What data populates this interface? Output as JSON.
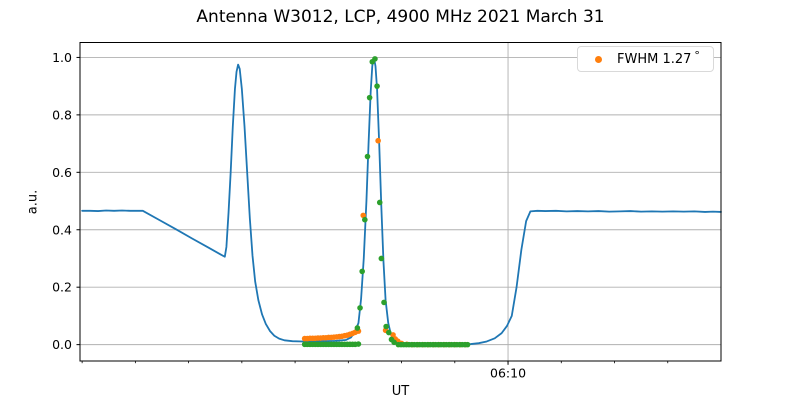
{
  "chart_data": {
    "type": "line",
    "title": "Antenna W3012, LCP, 4900 MHz 2021 March 31",
    "xlabel": "UT",
    "ylabel": "a.u.",
    "legend": {
      "label": "FWHM 1.27",
      "degree_symbol": "°",
      "position": "upper right",
      "marker_color": "#ff7f0e"
    },
    "background": "#ffffff",
    "grid": {
      "horizontal": true,
      "vertical_at_major_ticks": true,
      "color": "#b0b0b0"
    },
    "x_axis": {
      "t_unit": "minutes after 06:00 UT",
      "range": [
        1.96,
        14.0
      ],
      "minor_ticks": [
        2,
        3,
        4,
        5,
        6,
        7,
        8,
        9,
        10,
        11,
        12,
        13
      ],
      "major_ticks": [
        {
          "t": 10,
          "label": "06:10"
        }
      ]
    },
    "y_axis": {
      "range": [
        -0.057,
        1.052
      ],
      "ticks": [
        {
          "v": 0.0,
          "label": "0.0"
        },
        {
          "v": 0.2,
          "label": "0.2"
        },
        {
          "v": 0.4,
          "label": "0.4"
        },
        {
          "v": 0.6,
          "label": "0.6"
        },
        {
          "v": 0.8,
          "label": "0.8"
        },
        {
          "v": 1.0,
          "label": "1.0"
        }
      ]
    },
    "series": [
      {
        "name": "drift-scan-signal",
        "type": "line",
        "color": "#1f77b4",
        "line_width": 1.8,
        "points": [
          [
            2.0,
            0.466
          ],
          [
            2.15,
            0.466
          ],
          [
            2.3,
            0.465
          ],
          [
            2.45,
            0.467
          ],
          [
            2.6,
            0.466
          ],
          [
            2.75,
            0.467
          ],
          [
            2.9,
            0.466
          ],
          [
            3.05,
            0.466
          ],
          [
            3.14,
            0.466
          ],
          [
            3.45,
            0.434
          ],
          [
            3.76,
            0.402
          ],
          [
            4.07,
            0.369
          ],
          [
            4.38,
            0.337
          ],
          [
            4.6,
            0.314
          ],
          [
            4.68,
            0.306
          ],
          [
            4.71,
            0.34
          ],
          [
            4.75,
            0.46
          ],
          [
            4.79,
            0.6
          ],
          [
            4.83,
            0.76
          ],
          [
            4.87,
            0.89
          ],
          [
            4.9,
            0.95
          ],
          [
            4.93,
            0.975
          ],
          [
            4.96,
            0.96
          ],
          [
            5.0,
            0.89
          ],
          [
            5.05,
            0.76
          ],
          [
            5.1,
            0.6
          ],
          [
            5.15,
            0.44
          ],
          [
            5.2,
            0.31
          ],
          [
            5.25,
            0.22
          ],
          [
            5.31,
            0.155
          ],
          [
            5.38,
            0.105
          ],
          [
            5.45,
            0.072
          ],
          [
            5.53,
            0.047
          ],
          [
            5.61,
            0.031
          ],
          [
            5.7,
            0.021
          ],
          [
            5.8,
            0.015
          ],
          [
            5.95,
            0.012
          ],
          [
            6.15,
            0.011
          ],
          [
            6.35,
            0.011
          ],
          [
            6.55,
            0.012
          ],
          [
            6.75,
            0.013
          ],
          [
            6.95,
            0.016
          ],
          [
            7.05,
            0.025
          ],
          [
            7.12,
            0.045
          ],
          [
            7.19,
            0.075
          ],
          [
            7.24,
            0.16
          ],
          [
            7.29,
            0.3
          ],
          [
            7.34,
            0.5
          ],
          [
            7.38,
            0.7
          ],
          [
            7.42,
            0.88
          ],
          [
            7.45,
            0.97
          ],
          [
            7.48,
            1.0
          ],
          [
            7.51,
            0.97
          ],
          [
            7.54,
            0.89
          ],
          [
            7.58,
            0.7
          ],
          [
            7.62,
            0.48
          ],
          [
            7.66,
            0.29
          ],
          [
            7.7,
            0.155
          ],
          [
            7.75,
            0.075
          ],
          [
            7.8,
            0.035
          ],
          [
            7.85,
            0.016
          ],
          [
            7.92,
            0.008
          ],
          [
            8.02,
            0.004
          ],
          [
            8.2,
            0.002
          ],
          [
            8.5,
            0.001
          ],
          [
            8.8,
            0.001
          ],
          [
            9.1,
            0.001
          ],
          [
            9.3,
            0.002
          ],
          [
            9.45,
            0.005
          ],
          [
            9.6,
            0.011
          ],
          [
            9.75,
            0.022
          ],
          [
            9.88,
            0.04
          ],
          [
            9.98,
            0.065
          ],
          [
            10.07,
            0.1
          ],
          [
            10.16,
            0.2
          ],
          [
            10.25,
            0.33
          ],
          [
            10.34,
            0.43
          ],
          [
            10.42,
            0.464
          ],
          [
            10.55,
            0.466
          ],
          [
            10.7,
            0.465
          ],
          [
            10.9,
            0.466
          ],
          [
            11.1,
            0.464
          ],
          [
            11.3,
            0.465
          ],
          [
            11.5,
            0.464
          ],
          [
            11.7,
            0.465
          ],
          [
            11.9,
            0.463
          ],
          [
            12.1,
            0.464
          ],
          [
            12.3,
            0.465
          ],
          [
            12.5,
            0.463
          ],
          [
            12.7,
            0.464
          ],
          [
            12.9,
            0.463
          ],
          [
            13.1,
            0.464
          ],
          [
            13.3,
            0.463
          ],
          [
            13.5,
            0.464
          ],
          [
            13.7,
            0.462
          ],
          [
            13.85,
            0.463
          ],
          [
            14.0,
            0.462
          ]
        ]
      },
      {
        "name": "gaussian-fit-markers",
        "type": "scatter",
        "color": "#ff7f0e",
        "marker": "dot",
        "marker_radius": 2.8,
        "legend_label": "FWHM 1.27 °",
        "points": [
          [
            6.18,
            0.021
          ],
          [
            6.23,
            0.021
          ],
          [
            6.28,
            0.022
          ],
          [
            6.33,
            0.022
          ],
          [
            6.38,
            0.022
          ],
          [
            6.43,
            0.023
          ],
          [
            6.48,
            0.023
          ],
          [
            6.53,
            0.024
          ],
          [
            6.58,
            0.024
          ],
          [
            6.63,
            0.025
          ],
          [
            6.68,
            0.025
          ],
          [
            6.73,
            0.026
          ],
          [
            6.78,
            0.027
          ],
          [
            6.83,
            0.028
          ],
          [
            6.88,
            0.029
          ],
          [
            6.93,
            0.031
          ],
          [
            6.98,
            0.033
          ],
          [
            7.03,
            0.036
          ],
          [
            7.08,
            0.039
          ],
          [
            7.13,
            0.043
          ],
          [
            7.19,
            0.047
          ],
          [
            7.28,
            0.45
          ],
          [
            7.56,
            0.71
          ],
          [
            7.7,
            0.05
          ],
          [
            7.84,
            0.034
          ],
          [
            7.88,
            0.02
          ],
          [
            7.93,
            0.012
          ],
          [
            8.0,
            0.004
          ],
          [
            8.1,
            0.001
          ],
          [
            8.2,
            0.0
          ],
          [
            8.3,
            0.0
          ],
          [
            8.4,
            0.0
          ],
          [
            8.5,
            0.0
          ],
          [
            8.6,
            0.0
          ],
          [
            8.7,
            0.0
          ],
          [
            8.8,
            0.0
          ],
          [
            8.9,
            0.0
          ],
          [
            9.0,
            0.0
          ],
          [
            9.1,
            0.0
          ],
          [
            9.2,
            0.0
          ]
        ]
      },
      {
        "name": "calibrated-data-markers",
        "type": "scatter",
        "color": "#2ca02c",
        "marker": "dot",
        "marker_radius": 2.8,
        "points": [
          [
            6.18,
            0.001
          ],
          [
            6.23,
            0.001
          ],
          [
            6.28,
            0.001
          ],
          [
            6.33,
            0.001
          ],
          [
            6.38,
            0.001
          ],
          [
            6.43,
            0.001
          ],
          [
            6.48,
            0.001
          ],
          [
            6.53,
            0.001
          ],
          [
            6.58,
            0.001
          ],
          [
            6.63,
            0.001
          ],
          [
            6.68,
            0.001
          ],
          [
            6.73,
            0.001
          ],
          [
            6.78,
            0.001
          ],
          [
            6.83,
            0.001
          ],
          [
            6.88,
            0.001
          ],
          [
            6.93,
            0.001
          ],
          [
            6.98,
            0.001
          ],
          [
            7.03,
            0.001
          ],
          [
            7.08,
            0.001
          ],
          [
            7.13,
            0.001
          ],
          [
            7.19,
            0.002
          ],
          [
            7.17,
            0.058
          ],
          [
            7.22,
            0.128
          ],
          [
            7.26,
            0.255
          ],
          [
            7.31,
            0.435
          ],
          [
            7.36,
            0.655
          ],
          [
            7.4,
            0.86
          ],
          [
            7.45,
            0.985
          ],
          [
            7.5,
            0.995
          ],
          [
            7.54,
            0.9
          ],
          [
            7.59,
            0.495
          ],
          [
            7.62,
            0.3
          ],
          [
            7.67,
            0.147
          ],
          [
            7.71,
            0.063
          ],
          [
            7.76,
            0.042
          ],
          [
            7.81,
            0.018
          ],
          [
            7.86,
            0.008
          ],
          [
            7.94,
            0.0
          ],
          [
            7.99,
            0.0
          ],
          [
            8.04,
            0.0
          ],
          [
            8.09,
            0.0
          ],
          [
            8.14,
            0.0
          ],
          [
            8.19,
            0.0
          ],
          [
            8.24,
            0.0
          ],
          [
            8.29,
            0.0
          ],
          [
            8.34,
            0.0
          ],
          [
            8.39,
            0.0
          ],
          [
            8.44,
            0.0
          ],
          [
            8.49,
            0.0
          ],
          [
            8.54,
            0.0
          ],
          [
            8.59,
            0.0
          ],
          [
            8.64,
            0.0
          ],
          [
            8.69,
            0.0
          ],
          [
            8.74,
            0.0
          ],
          [
            8.79,
            0.0
          ],
          [
            8.84,
            0.0
          ],
          [
            8.89,
            0.0
          ],
          [
            8.94,
            0.0
          ],
          [
            8.99,
            0.0
          ],
          [
            9.04,
            0.0
          ],
          [
            9.09,
            0.0
          ],
          [
            9.14,
            0.0
          ],
          [
            9.19,
            0.0
          ],
          [
            9.24,
            0.0
          ]
        ]
      }
    ]
  }
}
